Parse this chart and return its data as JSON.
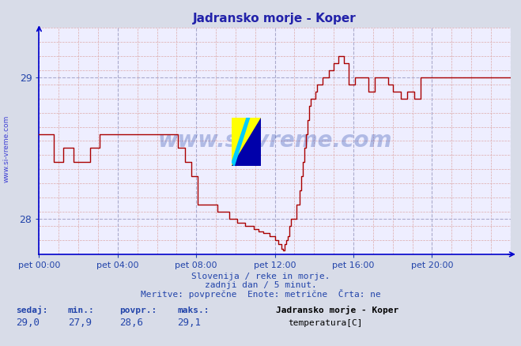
{
  "title": "Jadransko morje - Koper",
  "title_color": "#2222aa",
  "bg_color": "#d8dce8",
  "plot_bg_color": "#eeeeff",
  "grid_color_major": "#aaaacc",
  "grid_color_minor": "#ddaaaa",
  "line_color": "#aa0000",
  "axis_color": "#0000cc",
  "tick_color": "#2244aa",
  "ylim": [
    27.75,
    29.35
  ],
  "yticks": [
    28,
    29
  ],
  "xlim": [
    0,
    288
  ],
  "xtick_positions": [
    0,
    48,
    96,
    144,
    192,
    240
  ],
  "xtick_labels": [
    "pet 00:00",
    "pet 04:00",
    "pet 08:00",
    "pet 12:00",
    "pet 16:00",
    "pet 20:00"
  ],
  "watermark_text": "www.si-vreme.com",
  "watermark_color": "#2244aa",
  "watermark_alpha": 0.3,
  "footer_line1": "Slovenija / reke in morje.",
  "footer_line2": "zadnji dan / 5 minut.",
  "footer_line3": "Meritve: povprečne  Enote: metrične  Črta: ne",
  "footer_color": "#2244aa",
  "stats_labels": [
    "sedaj:",
    "min.:",
    "povpr.:",
    "maks.:"
  ],
  "stats_values": [
    "29,0",
    "27,9",
    "28,6",
    "29,1"
  ],
  "legend_title": "Jadransko morje - Koper",
  "legend_label": "temperatura[C]",
  "legend_color": "#aa0000",
  "temp_points": [
    [
      0,
      28.6
    ],
    [
      8,
      28.6
    ],
    [
      9,
      28.4
    ],
    [
      14,
      28.4
    ],
    [
      15,
      28.5
    ],
    [
      20,
      28.5
    ],
    [
      21,
      28.4
    ],
    [
      30,
      28.4
    ],
    [
      31,
      28.5
    ],
    [
      36,
      28.5
    ],
    [
      37,
      28.6
    ],
    [
      84,
      28.6
    ],
    [
      85,
      28.5
    ],
    [
      88,
      28.5
    ],
    [
      89,
      28.4
    ],
    [
      92,
      28.4
    ],
    [
      93,
      28.3
    ],
    [
      96,
      28.3
    ],
    [
      97,
      28.1
    ],
    [
      108,
      28.1
    ],
    [
      109,
      28.05
    ],
    [
      115,
      28.05
    ],
    [
      116,
      28.0
    ],
    [
      120,
      28.0
    ],
    [
      121,
      27.97
    ],
    [
      125,
      27.97
    ],
    [
      126,
      27.95
    ],
    [
      130,
      27.95
    ],
    [
      131,
      27.93
    ],
    [
      133,
      27.93
    ],
    [
      134,
      27.91
    ],
    [
      136,
      27.91
    ],
    [
      137,
      27.9
    ],
    [
      140,
      27.9
    ],
    [
      141,
      27.88
    ],
    [
      143,
      27.88
    ],
    [
      144,
      27.85
    ],
    [
      145,
      27.85
    ],
    [
      146,
      27.82
    ],
    [
      147,
      27.82
    ],
    [
      148,
      27.79
    ],
    [
      149,
      27.78
    ],
    [
      150,
      27.82
    ],
    [
      151,
      27.85
    ],
    [
      152,
      27.88
    ],
    [
      153,
      27.95
    ],
    [
      154,
      28.0
    ],
    [
      156,
      28.0
    ],
    [
      157,
      28.1
    ],
    [
      158,
      28.1
    ],
    [
      159,
      28.2
    ],
    [
      160,
      28.3
    ],
    [
      161,
      28.4
    ],
    [
      162,
      28.5
    ],
    [
      163,
      28.6
    ],
    [
      164,
      28.7
    ],
    [
      165,
      28.8
    ],
    [
      166,
      28.85
    ],
    [
      168,
      28.85
    ],
    [
      169,
      28.9
    ],
    [
      170,
      28.95
    ],
    [
      172,
      28.95
    ],
    [
      173,
      29.0
    ],
    [
      176,
      29.0
    ],
    [
      177,
      29.05
    ],
    [
      179,
      29.05
    ],
    [
      180,
      29.1
    ],
    [
      182,
      29.1
    ],
    [
      183,
      29.15
    ],
    [
      185,
      29.15
    ],
    [
      186,
      29.1
    ],
    [
      188,
      29.1
    ],
    [
      189,
      28.95
    ],
    [
      192,
      28.95
    ],
    [
      193,
      29.0
    ],
    [
      200,
      29.0
    ],
    [
      201,
      28.9
    ],
    [
      204,
      28.9
    ],
    [
      205,
      29.0
    ],
    [
      212,
      29.0
    ],
    [
      213,
      28.95
    ],
    [
      215,
      28.95
    ],
    [
      216,
      28.9
    ],
    [
      220,
      28.9
    ],
    [
      221,
      28.85
    ],
    [
      224,
      28.85
    ],
    [
      225,
      28.9
    ],
    [
      228,
      28.9
    ],
    [
      229,
      28.85
    ],
    [
      232,
      28.85
    ],
    [
      233,
      29.0
    ],
    [
      240,
      29.0
    ],
    [
      288,
      29.0
    ]
  ]
}
